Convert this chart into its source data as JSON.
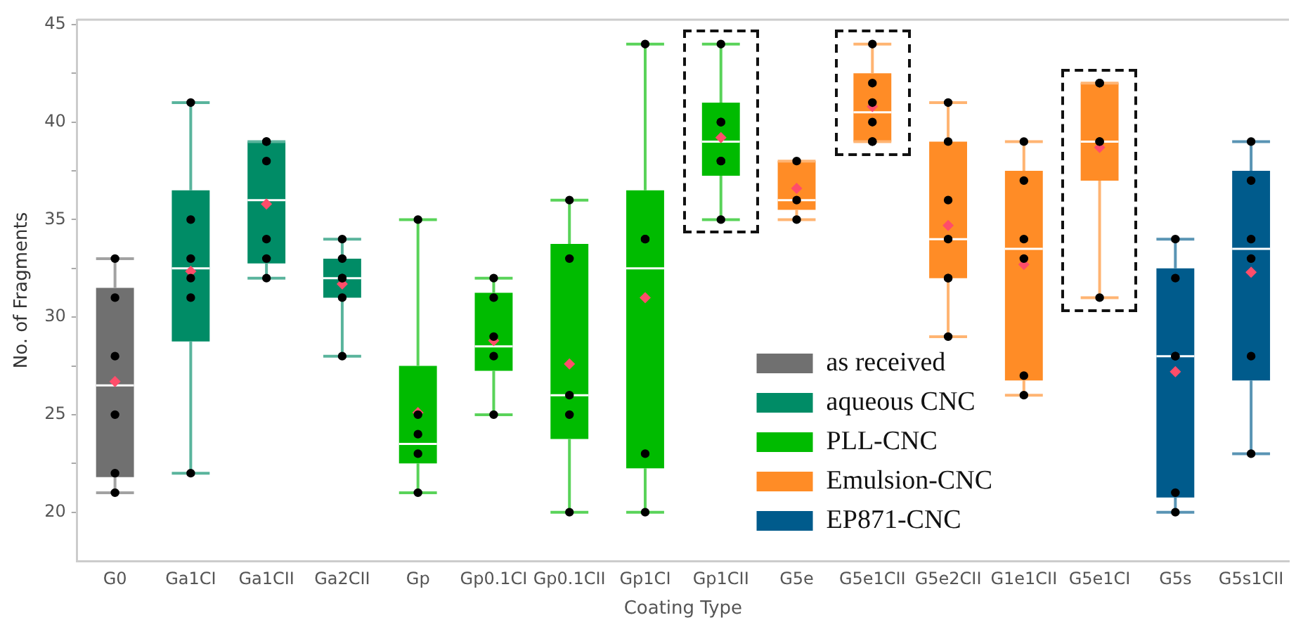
{
  "chart_data": {
    "type": "box",
    "xlabel": "Coating Type",
    "ylabel": "No. of Fragments",
    "categories": [
      "G0",
      "Ga1CI",
      "Ga1CII",
      "Ga2CII",
      "Gp",
      "Gp0.1CI",
      "Gp0.1CII",
      "Gp1CI",
      "Gp1CII",
      "G5e",
      "G5e1CII",
      "G5e2CII",
      "G1e1CII",
      "G5e1CI",
      "G5s",
      "G5s1CII"
    ],
    "ylim": [
      17.5,
      45.25
    ],
    "yticks": [
      20,
      {
        "value": 22.5,
        "label": null
      },
      25,
      {
        "value": 27.5,
        "label": null
      },
      30,
      {
        "value": 32.5,
        "label": null
      },
      35,
      {
        "value": 37.5,
        "label": null
      },
      40,
      {
        "value": 42.5,
        "label": null
      },
      45
    ],
    "grid": false,
    "legend": "bottom right",
    "series": [
      {
        "name": "as received",
        "color": "#707070",
        "boxes": [
          {
            "low": 21,
            "q1": 21.8,
            "median": 26.5,
            "q3": 31.5,
            "high": 33,
            "mean": 26.7
          },
          null,
          null,
          null,
          null,
          null,
          null,
          null,
          null,
          null,
          null,
          null,
          null,
          null,
          null,
          null
        ]
      },
      {
        "name": "aqueous CNC",
        "color": "#008c66",
        "boxes": [
          null,
          {
            "low": 22,
            "q1": 28.75,
            "median": 32.5,
            "q3": 36.5,
            "high": 41,
            "mean": 32.35
          },
          {
            "low": 32,
            "q1": 32.75,
            "median": 36,
            "q3": 39,
            "high": 39,
            "mean": 35.8
          },
          {
            "low": 28,
            "q1": 31,
            "median": 32,
            "q3": 33,
            "high": 34,
            "mean": 31.7
          },
          null,
          null,
          null,
          null,
          null,
          null,
          null,
          null,
          null,
          null,
          null,
          null
        ]
      },
      {
        "name": "PLL-CNC",
        "color": "#00bb00",
        "boxes": [
          null,
          null,
          null,
          null,
          {
            "low": 21,
            "q1": 22.5,
            "median": 23.5,
            "q3": 27.5,
            "high": 35,
            "mean": 25.1
          },
          {
            "low": 25,
            "q1": 27.25,
            "median": 28.5,
            "q3": 31.25,
            "high": 32,
            "mean": 28.8
          },
          {
            "low": 20,
            "q1": 23.75,
            "median": 26,
            "q3": 33.75,
            "high": 36,
            "mean": 27.6
          },
          {
            "low": 20,
            "q1": 22.25,
            "median": 32.5,
            "q3": 36.5,
            "high": 44,
            "mean": 31
          },
          {
            "low": 35,
            "q1": 37.25,
            "median": 39,
            "q3": 41,
            "high": 44,
            "mean": 39.2
          },
          null,
          null,
          null,
          null,
          null,
          null,
          null
        ]
      },
      {
        "name": "Emulsion-CNC",
        "color": "#ff8c26",
        "boxes": [
          null,
          null,
          null,
          null,
          null,
          null,
          null,
          null,
          null,
          {
            "low": 35,
            "q1": 35.5,
            "median": 36,
            "q3": 38,
            "high": 38,
            "mean": 36.6
          },
          {
            "low": 39,
            "q1": 39,
            "median": 40.5,
            "q3": 42.5,
            "high": 44,
            "mean": 40.8
          },
          {
            "low": 29,
            "q1": 32,
            "median": 34,
            "q3": 39,
            "high": 41,
            "mean": 34.7
          },
          {
            "low": 26,
            "q1": 26.75,
            "median": 33.5,
            "q3": 37.5,
            "high": 39,
            "mean": 32.7
          },
          {
            "low": 31,
            "q1": 37,
            "median": 39,
            "q3": 42,
            "high": 42,
            "mean": 38.7
          },
          null,
          null
        ]
      },
      {
        "name": "EP871-CNC",
        "color": "#005b8c",
        "boxes": [
          null,
          null,
          null,
          null,
          null,
          null,
          null,
          null,
          null,
          null,
          null,
          null,
          null,
          null,
          {
            "low": 20,
            "q1": 20.75,
            "median": 28,
            "q3": 32.5,
            "high": 34,
            "mean": 27.2
          },
          {
            "low": 23,
            "q1": 26.75,
            "median": 33.5,
            "q3": 37.5,
            "high": 39,
            "mean": 32.3
          }
        ]
      },
      {
        "type": "scatter",
        "color": "#000000",
        "marker": "circle",
        "x": [
          "G0",
          "G0",
          "G0",
          "G0",
          "G0",
          "G0",
          "Ga1CI",
          "Ga1CI",
          "Ga1CI",
          "Ga1CI",
          "Ga1CI",
          "Ga1CI",
          "Ga1CII",
          "Ga1CII",
          "Ga1CII",
          "Ga1CII",
          "Ga1CII",
          "Ga1CII",
          "Ga2CII",
          "Ga2CII",
          "Ga2CII",
          "Ga2CII",
          "Ga2CII",
          "Ga2CII",
          "Gp",
          "Gp",
          "Gp",
          "Gp",
          "Gp",
          "Gp0.1CI",
          "Gp0.1CI",
          "Gp0.1CI",
          "Gp0.1CI",
          "Gp0.1CI",
          "Gp0.1CII",
          "Gp0.1CII",
          "Gp0.1CII",
          "Gp0.1CII",
          "Gp0.1CII",
          "Gp1CI",
          "Gp1CI",
          "Gp1CI",
          "Gp1CI",
          "Gp1CI",
          "Gp1CII",
          "Gp1CII",
          "Gp1CII",
          "Gp1CII",
          "Gp1CII",
          "Gp1CII",
          "G5e",
          "G5e",
          "G5e",
          "G5e1CII",
          "G5e1CII",
          "G5e1CII",
          "G5e1CII",
          "G5e1CII",
          "G5e1CII",
          "G5e2CII",
          "G5e2CII",
          "G5e2CII",
          "G5e2CII",
          "G5e2CII",
          "G5e2CII",
          "G5e2CII",
          "G1e1CII",
          "G1e1CII",
          "G1e1CII",
          "G1e1CII",
          "G1e1CII",
          "G1e1CII",
          "G5e1CI",
          "G5e1CI",
          "G5e1CI",
          "G5e1CI",
          "G5e1CI",
          "G5s",
          "G5s",
          "G5s",
          "G5s",
          "G5s",
          "G5s",
          "G5s1CII",
          "G5s1CII",
          "G5s1CII",
          "G5s1CII",
          "G5s1CII",
          "G5s1CII"
        ],
        "values": [
          33,
          31,
          28,
          25,
          22,
          21,
          41,
          35,
          33,
          32,
          31,
          22,
          39,
          39,
          38,
          34,
          33,
          32,
          34,
          33,
          32,
          32,
          31,
          28,
          35,
          25,
          24,
          23,
          21,
          32,
          31,
          29,
          28,
          25,
          36,
          33,
          26,
          25,
          20,
          44,
          34,
          34,
          23,
          20,
          44,
          40,
          40,
          38,
          38,
          35,
          38,
          36,
          35,
          44,
          42,
          41,
          40,
          39,
          39,
          41,
          39,
          36,
          34,
          32,
          32,
          29,
          39,
          37,
          34,
          33,
          27,
          26,
          42,
          42,
          39,
          39,
          31,
          34,
          32,
          28,
          28,
          21,
          20,
          39,
          37,
          34,
          33,
          28,
          23
        ]
      }
    ]
  }
}
